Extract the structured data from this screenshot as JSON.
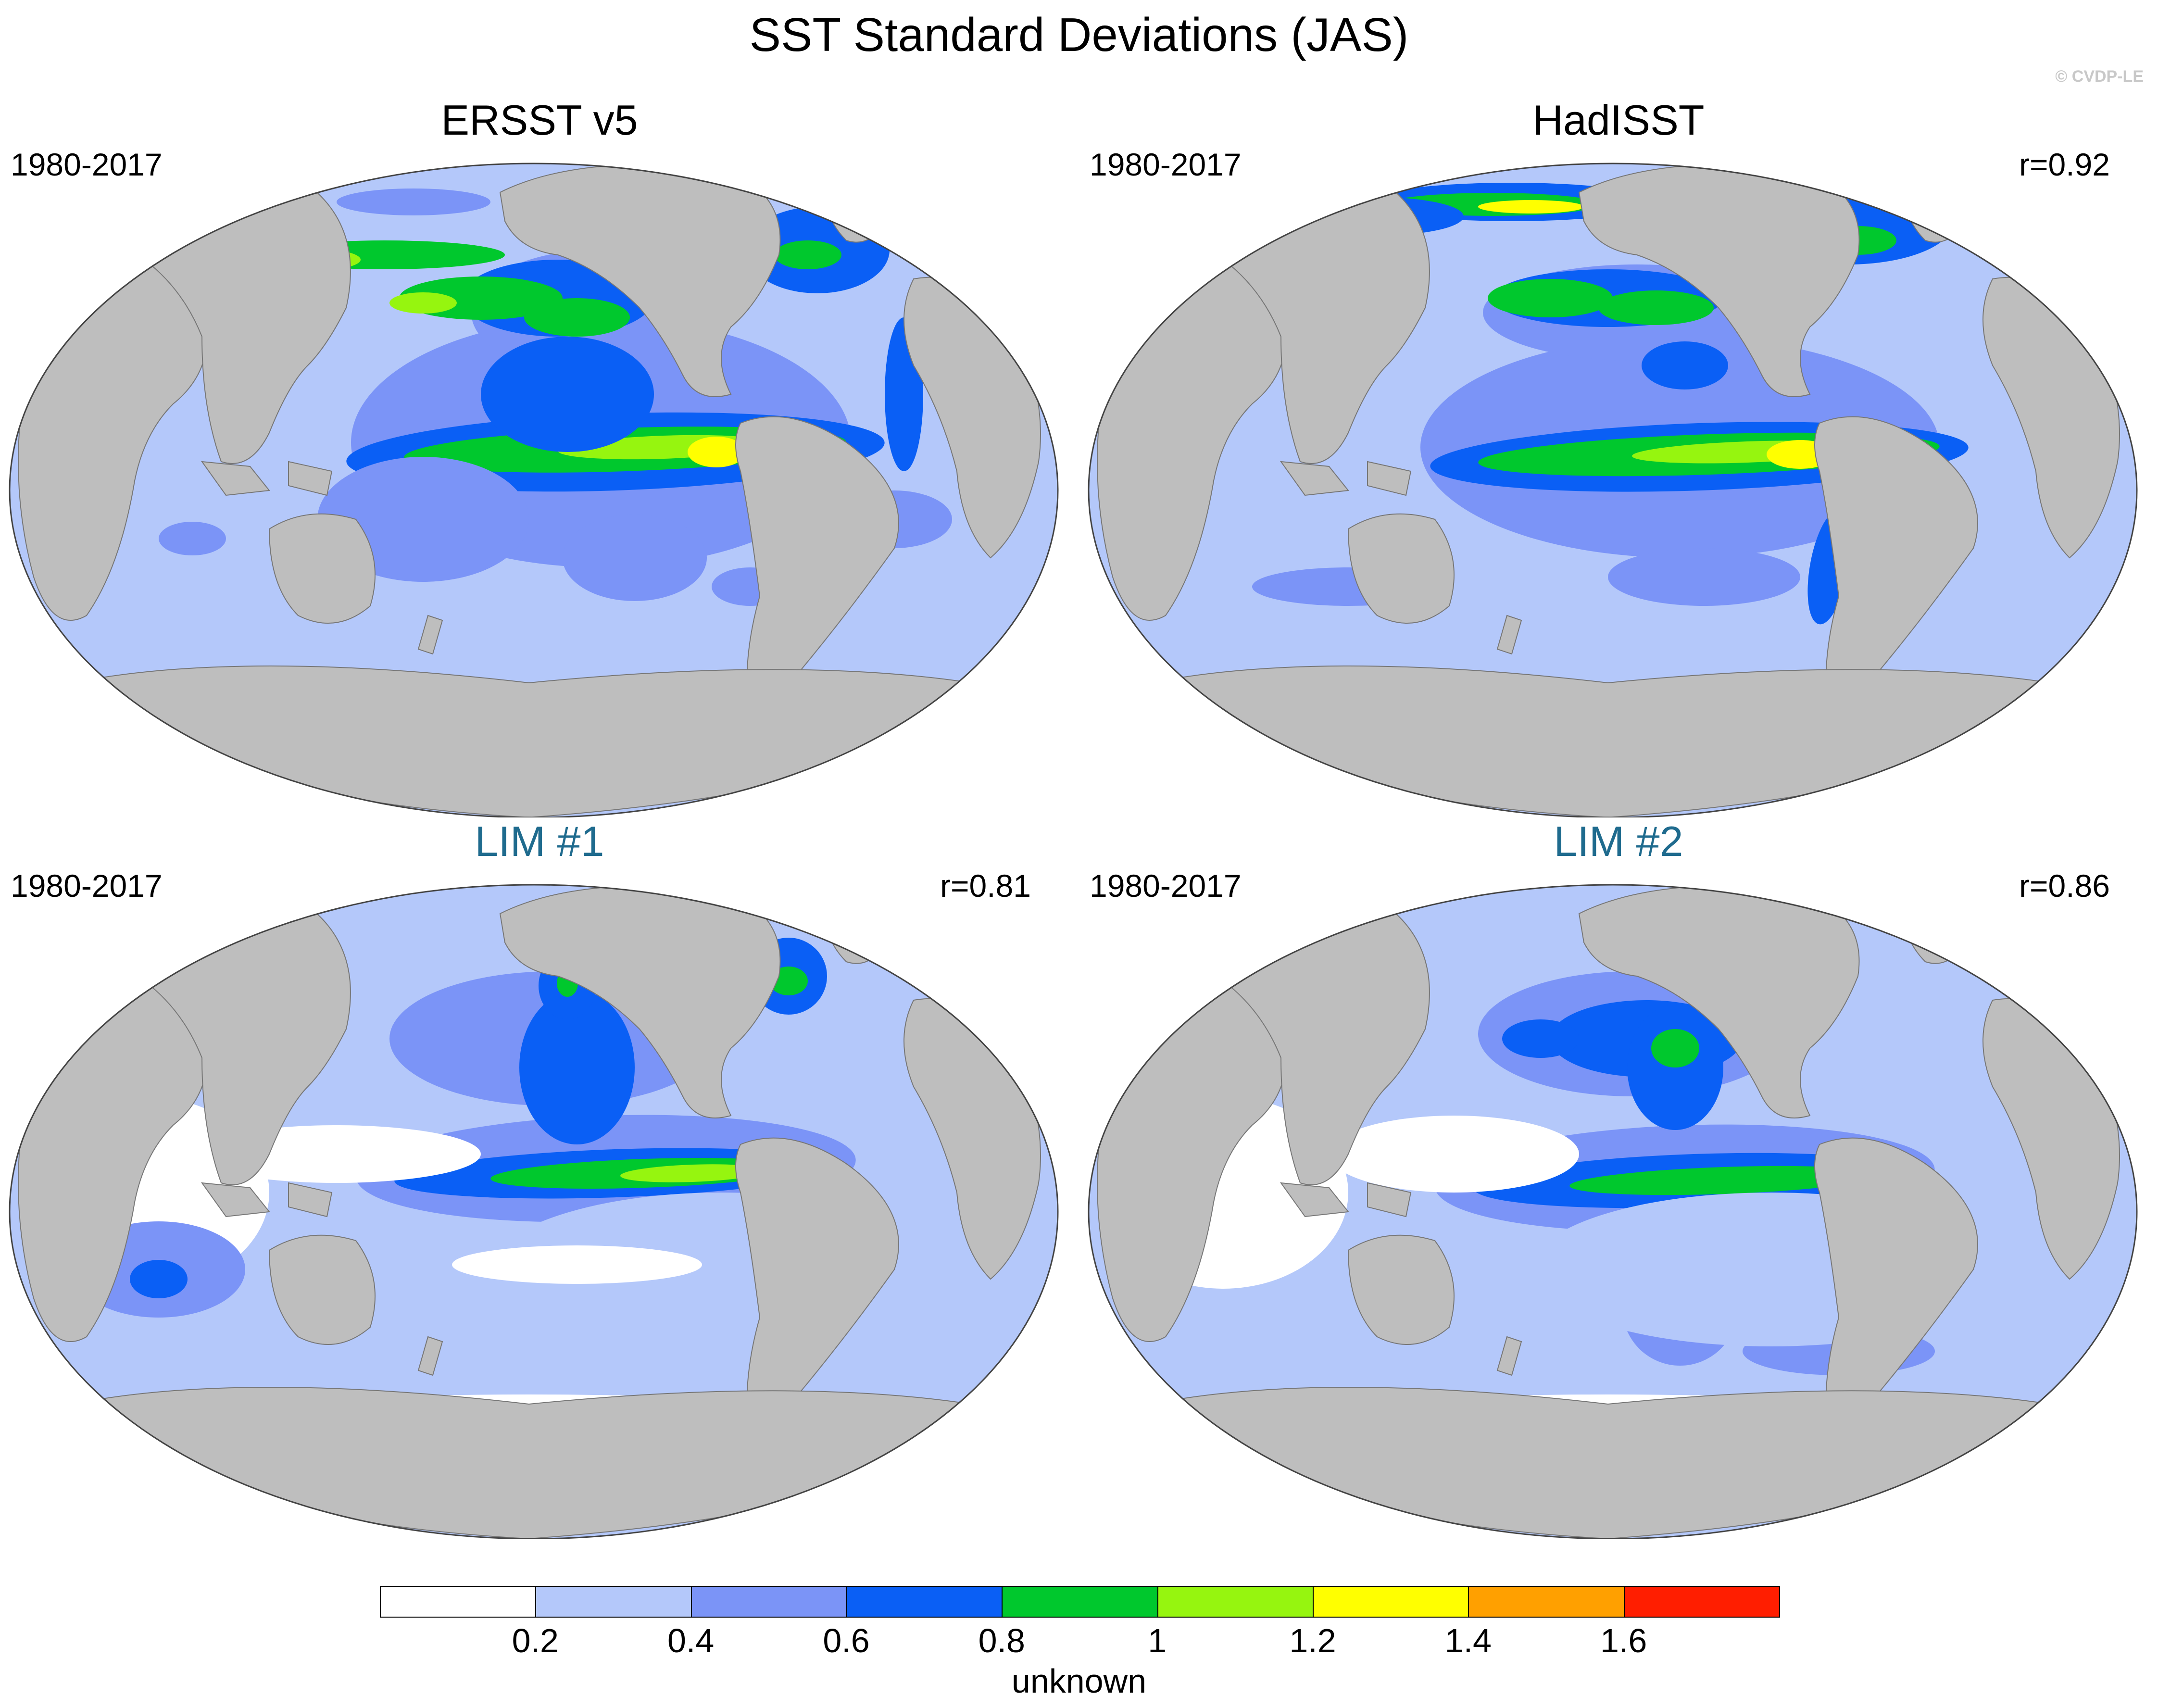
{
  "title": "SST Standard Deviations (JAS)",
  "watermark": "© CVDP-LE",
  "panels": [
    {
      "title": "ERSST v5",
      "period": "1980-2017",
      "corr": "",
      "style": "obs"
    },
    {
      "title": "HadISST",
      "period": "1980-2017",
      "corr": "r=0.92",
      "style": "obs"
    },
    {
      "title": "LIM #1",
      "period": "1980-2017",
      "corr": "r=0.81",
      "style": "lim"
    },
    {
      "title": "LIM #2",
      "period": "1980-2017",
      "corr": "r=0.86",
      "style": "lim"
    }
  ],
  "colorbar": {
    "colors": [
      "#ffffff",
      "#b4c8fa",
      "#7b94f7",
      "#0a5ff5",
      "#00c82d",
      "#96f50f",
      "#ffff00",
      "#ffa000",
      "#ff1e00"
    ],
    "labels": [
      "0.2",
      "0.4",
      "0.6",
      "0.8",
      "1",
      "1.2",
      "1.4",
      "1.6"
    ],
    "units": "unknown"
  },
  "land_color": "#bebebe"
}
